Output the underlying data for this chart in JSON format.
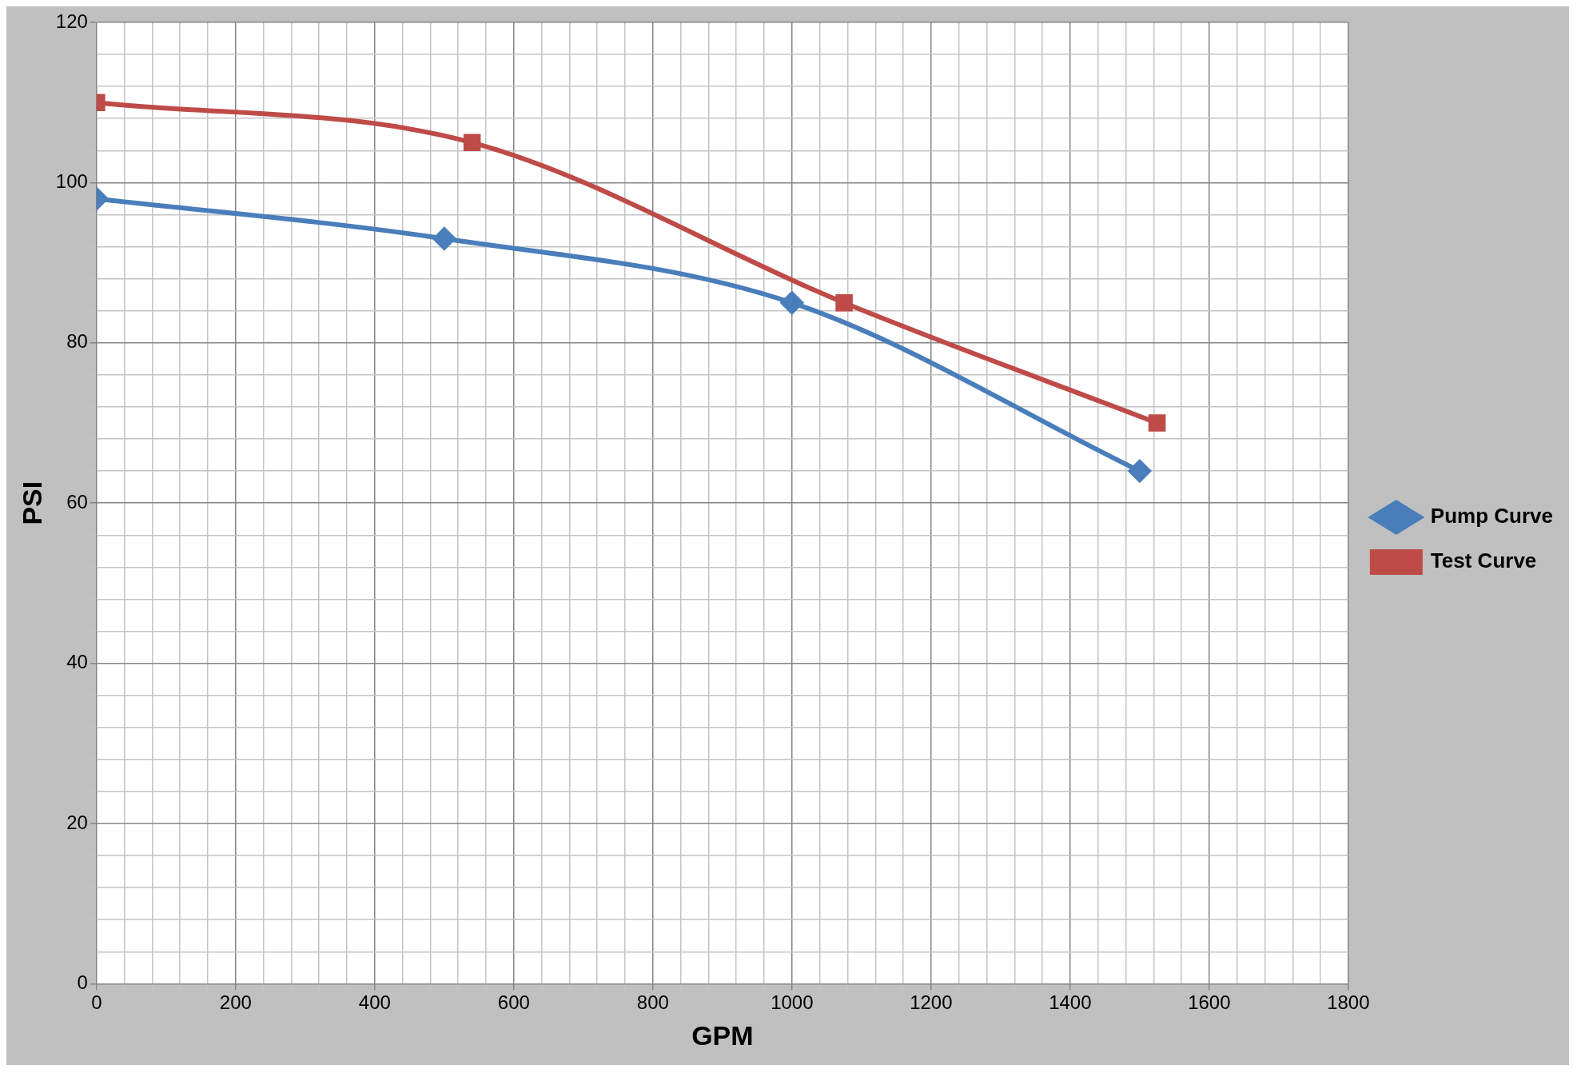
{
  "chart_data": {
    "type": "line",
    "xlabel": "GPM",
    "ylabel": "PSI",
    "series": [
      {
        "name": "Pump Curve",
        "color": "#4a7ebb",
        "marker": "diamond",
        "x": [
          0,
          500,
          1000,
          1500
        ],
        "values": [
          98,
          93,
          85,
          64
        ]
      },
      {
        "name": "Test Curve",
        "color": "#be4b48",
        "marker": "square",
        "x": [
          0,
          540,
          1075,
          1525
        ],
        "values": [
          110,
          105,
          85,
          70
        ]
      }
    ],
    "xlim": [
      0,
      1800
    ],
    "xticks": [
      0,
      {
        "value": 40,
        "label": null
      },
      {
        "value": 80,
        "label": null
      },
      {
        "value": 120,
        "label": null
      },
      {
        "value": 160,
        "label": null
      },
      200,
      {
        "value": 240,
        "label": null
      },
      {
        "value": 280,
        "label": null
      },
      {
        "value": 320,
        "label": null
      },
      {
        "value": 360,
        "label": null
      },
      400,
      {
        "value": 440,
        "label": null
      },
      {
        "value": 480,
        "label": null
      },
      {
        "value": 520,
        "label": null
      },
      {
        "value": 560,
        "label": null
      },
      600,
      {
        "value": 640,
        "label": null
      },
      {
        "value": 680,
        "label": null
      },
      {
        "value": 720,
        "label": null
      },
      {
        "value": 760,
        "label": null
      },
      800,
      {
        "value": 840,
        "label": null
      },
      {
        "value": 880,
        "label": null
      },
      {
        "value": 920,
        "label": null
      },
      {
        "value": 960,
        "label": null
      },
      1000,
      {
        "value": 1040,
        "label": null
      },
      {
        "value": 1080,
        "label": null
      },
      {
        "value": 1120,
        "label": null
      },
      {
        "value": 1160,
        "label": null
      },
      1200,
      {
        "value": 1240,
        "label": null
      },
      {
        "value": 1280,
        "label": null
      },
      {
        "value": 1320,
        "label": null
      },
      {
        "value": 1360,
        "label": null
      },
      1400,
      {
        "value": 1440,
        "label": null
      },
      {
        "value": 1480,
        "label": null
      },
      {
        "value": 1520,
        "label": null
      },
      {
        "value": 1560,
        "label": null
      },
      1600,
      {
        "value": 1640,
        "label": null
      },
      {
        "value": 1680,
        "label": null
      },
      {
        "value": 1720,
        "label": null
      },
      {
        "value": 1760,
        "label": null
      },
      1800
    ],
    "ylim": [
      0,
      120
    ],
    "yticks": [
      0,
      {
        "value": 4,
        "label": null
      },
      {
        "value": 8,
        "label": null
      },
      {
        "value": 12,
        "label": null
      },
      {
        "value": 16,
        "label": null
      },
      20,
      {
        "value": 24,
        "label": null
      },
      {
        "value": 28,
        "label": null
      },
      {
        "value": 32,
        "label": null
      },
      {
        "value": 36,
        "label": null
      },
      40,
      {
        "value": 44,
        "label": null
      },
      {
        "value": 48,
        "label": null
      },
      {
        "value": 52,
        "label": null
      },
      {
        "value": 56,
        "label": null
      },
      60,
      {
        "value": 64,
        "label": null
      },
      {
        "value": 68,
        "label": null
      },
      {
        "value": 72,
        "label": null
      },
      {
        "value": 76,
        "label": null
      },
      80,
      {
        "value": 84,
        "label": null
      },
      {
        "value": 88,
        "label": null
      },
      {
        "value": 92,
        "label": null
      },
      {
        "value": 96,
        "label": null
      },
      100,
      {
        "value": 104,
        "label": null
      },
      {
        "value": 108,
        "label": null
      },
      {
        "value": 112,
        "label": null
      },
      {
        "value": 116,
        "label": null
      },
      120
    ],
    "grid": true,
    "legend": "right",
    "line_style": "solid"
  }
}
